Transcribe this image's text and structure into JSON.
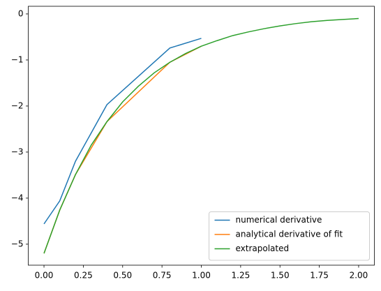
{
  "chart_data": {
    "type": "line",
    "series": [
      {
        "name": "numerical derivative",
        "color": "#1f77b4",
        "x": [
          0,
          0.1,
          0.2,
          0.4,
          0.8,
          1.0
        ],
        "values": [
          -4.56,
          -4.06,
          -3.2,
          -1.97,
          -0.74,
          -0.53
        ]
      },
      {
        "name": "analytical derivative of fit",
        "color": "#ff7f0e",
        "x": [
          0,
          0.1,
          0.2,
          0.4,
          0.8,
          1.0
        ],
        "values": [
          -5.2,
          -4.26,
          -3.49,
          -2.34,
          -1.05,
          -0.7
        ]
      },
      {
        "name": "extrapolated",
        "color": "#2ca02c",
        "x": [
          0,
          0.1,
          0.2,
          0.3,
          0.4,
          0.5,
          0.6,
          0.7,
          0.8,
          0.9,
          1.0,
          1.1,
          1.2,
          1.3,
          1.4,
          1.5,
          1.6,
          1.7,
          1.8,
          1.9,
          2.0
        ],
        "values": [
          -5.2,
          -4.26,
          -3.49,
          -2.85,
          -2.34,
          -1.91,
          -1.57,
          -1.28,
          -1.05,
          -0.86,
          -0.7,
          -0.58,
          -0.47,
          -0.39,
          -0.32,
          -0.26,
          -0.21,
          -0.17,
          -0.14,
          -0.12,
          -0.1
        ]
      }
    ],
    "xlim": [
      -0.1,
      2.1
    ],
    "ylim": [
      -5.456,
      0.166
    ],
    "xticks": [
      {
        "value": 0,
        "label": "0.00"
      },
      {
        "value": 0.25,
        "label": "0.25"
      },
      {
        "value": 0.5,
        "label": "0.50"
      },
      {
        "value": 0.75,
        "label": "0.75"
      },
      {
        "value": 1,
        "label": "1.00"
      },
      {
        "value": 1.25,
        "label": "1.25"
      },
      {
        "value": 1.5,
        "label": "1.50"
      },
      {
        "value": 1.75,
        "label": "1.75"
      },
      {
        "value": 2,
        "label": "2.00"
      }
    ],
    "yticks": [
      0,
      {
        "value": -1,
        "label": "−1"
      },
      {
        "value": -2,
        "label": "−2"
      },
      {
        "value": -3,
        "label": "−3"
      },
      {
        "value": -4,
        "label": "−4"
      },
      {
        "value": -5,
        "label": "−5"
      }
    ],
    "legend": "lower right"
  }
}
